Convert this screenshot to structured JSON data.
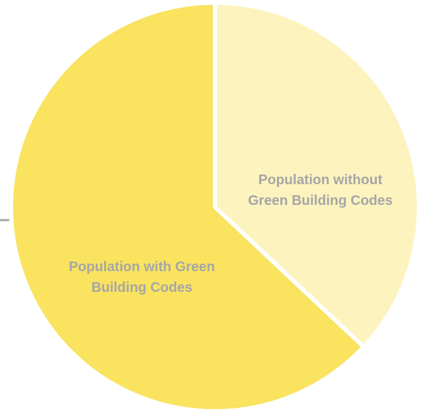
{
  "chart_data": {
    "type": "pie",
    "title": "",
    "start_angle_deg": 0,
    "direction": "clockwise",
    "slices": [
      {
        "label_lines": [
          "Population without",
          "Green Building Codes"
        ],
        "value": 37,
        "color": "#fdf3bf"
      },
      {
        "label_lines": [
          "Population with Green",
          "Building Codes"
        ],
        "value": 63,
        "color": "#f9e35f"
      }
    ],
    "label_color": "#a6a6a6",
    "background_color": "#ffffff"
  }
}
